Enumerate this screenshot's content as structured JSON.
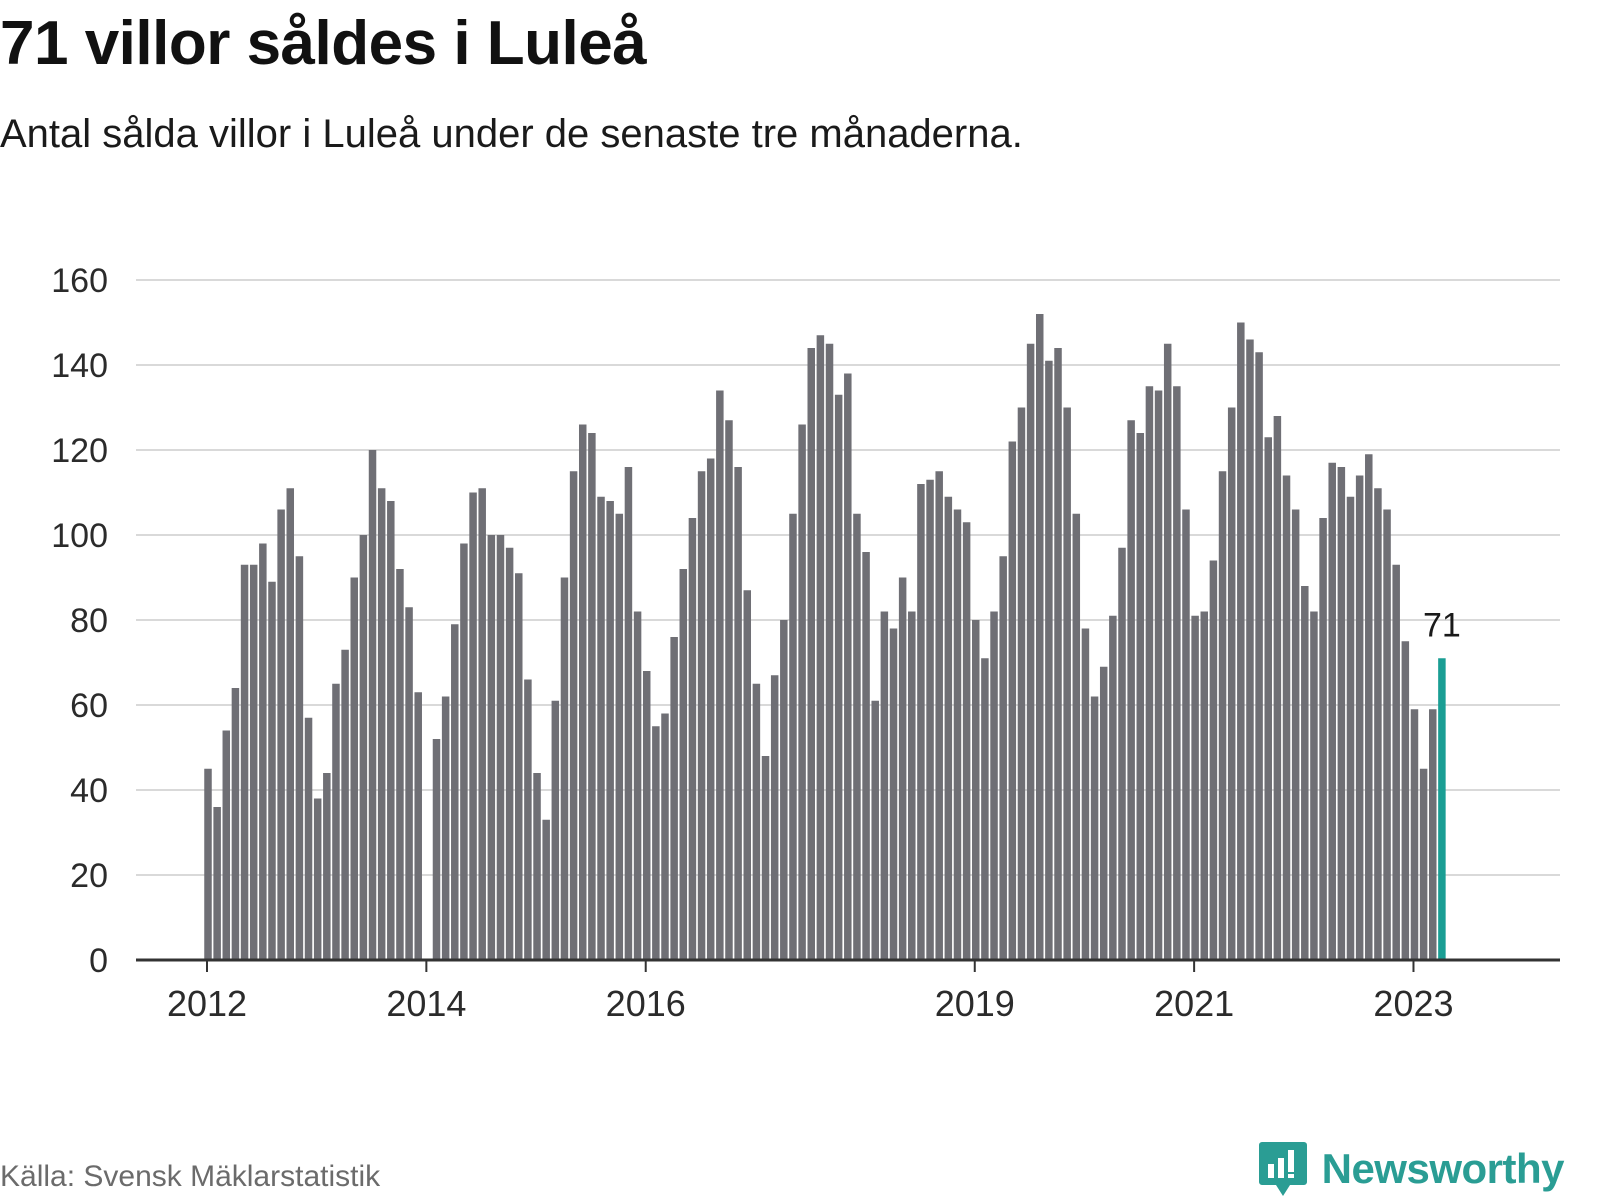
{
  "header": {
    "title": "71 villor såldes i Luleå",
    "subtitle": "Antal sålda villor i Luleå under de senaste tre månaderna."
  },
  "footer": {
    "source": "Källa: Svensk Mäklarstatistik",
    "brand": "Newsworthy",
    "brand_icon": "newsworthy-logo-icon"
  },
  "colors": {
    "bar": "#6f6f75",
    "highlight": "#1a9e94",
    "grid": "#d9d9d9",
    "axis": "#333333",
    "brand": "#2a9d94"
  },
  "chart_data": {
    "type": "bar",
    "ylim": [
      0,
      160
    ],
    "yticks": [
      "0",
      "20",
      "40",
      "60",
      "80",
      "100",
      "120",
      "140",
      "160"
    ],
    "xticks": [
      "2012",
      "2014",
      "2016",
      "2019",
      "2021",
      "2023"
    ],
    "values": [
      45,
      36,
      54,
      64,
      93,
      93,
      98,
      89,
      106,
      111,
      95,
      57,
      38,
      44,
      65,
      73,
      90,
      100,
      120,
      111,
      108,
      92,
      83,
      63,
      0,
      52,
      62,
      79,
      98,
      110,
      111,
      100,
      100,
      97,
      91,
      66,
      44,
      33,
      61,
      90,
      115,
      126,
      124,
      109,
      108,
      105,
      116,
      82,
      68,
      55,
      58,
      76,
      92,
      104,
      115,
      118,
      134,
      127,
      116,
      87,
      65,
      48,
      67,
      80,
      105,
      126,
      144,
      147,
      145,
      133,
      138,
      105,
      96,
      61,
      82,
      78,
      90,
      82,
      112,
      113,
      115,
      109,
      106,
      103,
      80,
      71,
      82,
      95,
      122,
      130,
      145,
      152,
      141,
      144,
      130,
      105,
      78,
      62,
      69,
      81,
      97,
      127,
      124,
      135,
      134,
      145,
      135,
      106,
      81,
      82,
      94,
      115,
      130,
      150,
      146,
      143,
      123,
      128,
      114,
      106,
      88,
      82,
      104,
      117,
      116,
      109,
      114,
      119,
      111,
      106,
      93,
      75,
      59,
      45,
      59,
      71
    ],
    "highlight_label": "71",
    "grid": true
  }
}
